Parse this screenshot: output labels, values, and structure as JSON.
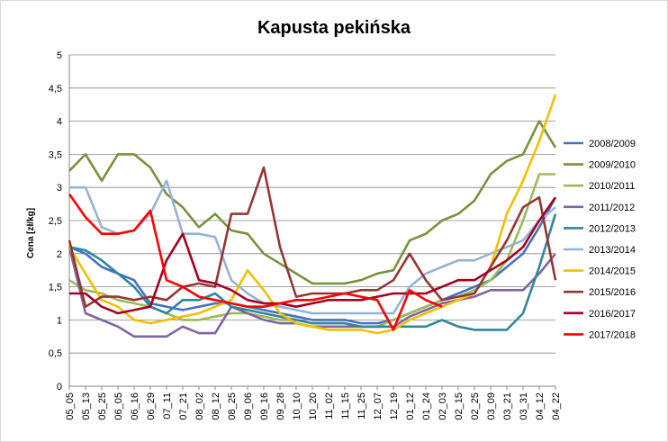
{
  "chart_data": {
    "type": "line",
    "title": "Kapusta pekińska",
    "xlabel": "",
    "ylabel": "Cena [zł/kg]",
    "ylim": [
      0,
      5
    ],
    "yticks": [
      "0",
      "0,5",
      "1",
      "1,5",
      "2",
      "2,5",
      "3",
      "3,5",
      "4",
      "4,5",
      "5"
    ],
    "ytick_values": [
      0,
      0.5,
      1,
      1.5,
      2,
      2.5,
      3,
      3.5,
      4,
      4.5,
      5
    ],
    "grid": "horizontal",
    "legend_position": "right",
    "categories": [
      "05_05",
      "05_13",
      "05_25",
      "06_05",
      "06_16",
      "06_29",
      "07_11",
      "07_21",
      "08_02",
      "08_12",
      "08_25",
      "09_06",
      "09_16",
      "09_28",
      "10_10",
      "10_20",
      "11_02",
      "11_15",
      "11_25",
      "12_07",
      "12_19",
      "01_12",
      "01_24",
      "02_03",
      "02_15",
      "02_25",
      "03_09",
      "03_21",
      "03_31",
      "04_12",
      "04_22"
    ],
    "series": [
      {
        "name": "2008/2009",
        "color": "#4472C4",
        "values": [
          2.1,
          2.0,
          1.8,
          1.7,
          1.6,
          1.25,
          1.2,
          1.15,
          1.2,
          1.25,
          1.25,
          1.2,
          1.15,
          1.1,
          1.05,
          1.0,
          1.0,
          1.0,
          0.95,
          0.95,
          1.0,
          1.1,
          1.2,
          1.3,
          1.4,
          1.5,
          1.6,
          1.8,
          2.0,
          2.4,
          2.85
        ]
      },
      {
        "name": "2009/2010",
        "color": "#77933C",
        "values": [
          3.25,
          3.5,
          3.1,
          3.5,
          3.5,
          3.3,
          2.9,
          2.7,
          2.4,
          2.6,
          2.35,
          2.3,
          2.0,
          1.85,
          1.7,
          1.55,
          1.55,
          1.55,
          1.6,
          1.7,
          1.75,
          2.2,
          2.3,
          2.5,
          2.6,
          2.8,
          3.2,
          3.4,
          3.5,
          4.0,
          3.6
        ]
      },
      {
        "name": "2010/2011",
        "color": "#9BBB59",
        "values": [
          1.6,
          1.45,
          1.4,
          1.3,
          1.25,
          1.2,
          1.1,
          1.0,
          1.0,
          1.05,
          1.1,
          1.1,
          1.05,
          1.0,
          1.0,
          0.95,
          0.95,
          0.95,
          0.9,
          0.9,
          1.0,
          1.1,
          1.2,
          1.3,
          1.35,
          1.45,
          1.6,
          1.9,
          2.5,
          3.2,
          3.2
        ]
      },
      {
        "name": "2011/2012",
        "color": "#8064A2",
        "values": [
          2.1,
          1.1,
          1.0,
          0.9,
          0.75,
          0.75,
          0.75,
          0.9,
          0.8,
          0.8,
          1.2,
          1.1,
          1.0,
          0.95,
          0.95,
          0.9,
          0.9,
          0.9,
          0.9,
          0.9,
          0.9,
          1.05,
          1.15,
          1.25,
          1.3,
          1.35,
          1.45,
          1.45,
          1.45,
          1.7,
          2.0
        ]
      },
      {
        "name": "2012/2013",
        "color": "#31859C",
        "values": [
          2.1,
          2.05,
          1.9,
          1.7,
          1.5,
          1.2,
          1.1,
          1.3,
          1.3,
          1.4,
          1.2,
          1.15,
          1.1,
          1.05,
          1.0,
          0.95,
          0.95,
          0.95,
          0.9,
          0.9,
          0.9,
          0.9,
          0.9,
          1.0,
          0.9,
          0.85,
          0.85,
          0.85,
          1.1,
          1.8,
          2.6
        ]
      },
      {
        "name": "2013/2014",
        "color": "#95B3D7",
        "values": [
          3.0,
          3.0,
          2.4,
          2.3,
          2.35,
          2.6,
          3.1,
          2.3,
          2.3,
          2.25,
          1.6,
          1.4,
          1.25,
          1.2,
          1.15,
          1.1,
          1.1,
          1.1,
          1.1,
          1.1,
          1.1,
          1.5,
          1.7,
          1.8,
          1.9,
          1.9,
          2.0,
          2.1,
          2.2,
          2.5,
          2.7
        ]
      },
      {
        "name": "2014/2015",
        "color": "#F0C000",
        "values": [
          2.1,
          1.7,
          1.3,
          1.2,
          1.0,
          0.95,
          1.0,
          1.05,
          1.1,
          1.2,
          1.3,
          1.75,
          1.45,
          1.1,
          0.95,
          0.9,
          0.85,
          0.85,
          0.85,
          0.8,
          0.85,
          1.0,
          1.1,
          1.2,
          1.3,
          1.4,
          1.8,
          2.6,
          3.1,
          3.7,
          4.4
        ]
      },
      {
        "name": "2015/2016",
        "color": "#943634",
        "values": [
          2.2,
          1.2,
          1.35,
          1.35,
          1.3,
          1.35,
          1.3,
          1.5,
          1.55,
          1.5,
          2.6,
          2.6,
          3.3,
          2.1,
          1.35,
          1.4,
          1.4,
          1.4,
          1.45,
          1.45,
          1.6,
          2.0,
          1.6,
          1.3,
          1.35,
          1.4,
          1.8,
          2.2,
          2.7,
          2.85,
          1.6
        ]
      },
      {
        "name": "2016/2017",
        "color": "#A50021",
        "values": [
          1.4,
          1.4,
          1.2,
          1.1,
          1.15,
          1.2,
          1.9,
          2.3,
          1.6,
          1.55,
          1.45,
          1.3,
          1.25,
          1.25,
          1.2,
          1.25,
          1.3,
          1.3,
          1.3,
          1.35,
          1.4,
          1.4,
          1.4,
          1.5,
          1.6,
          1.6,
          1.75,
          1.9,
          2.1,
          2.5,
          2.85
        ]
      },
      {
        "name": "2017/2018",
        "color": "#FF0000",
        "values": [
          2.9,
          2.55,
          2.3,
          2.3,
          2.35,
          2.65,
          1.6,
          1.5,
          1.35,
          1.3,
          1.25,
          1.2,
          1.2,
          1.25,
          1.3,
          1.3,
          1.35,
          1.4,
          1.35,
          1.3,
          0.85,
          1.45,
          1.3,
          1.2,
          null,
          null,
          null,
          null,
          null,
          null,
          null
        ]
      }
    ]
  }
}
